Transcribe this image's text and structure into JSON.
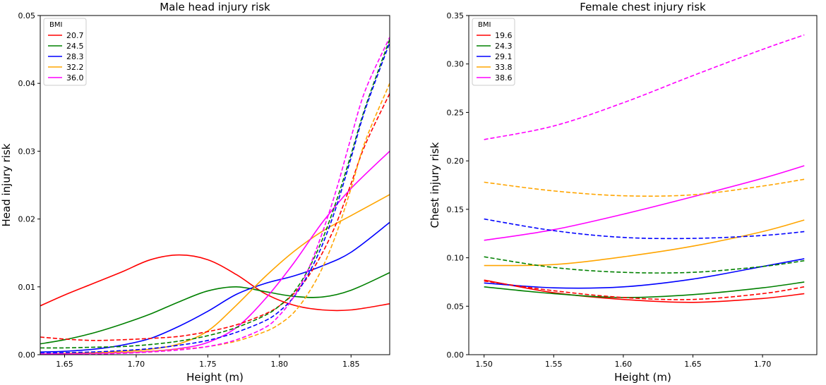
{
  "chart_data": [
    {
      "type": "line",
      "title": "Male head injury risk",
      "xlabel": "Height (m)",
      "ylabel": "Head injury risk",
      "xlim": [
        1.633,
        1.877
      ],
      "ylim": [
        0,
        0.05
      ],
      "xticks": [
        1.65,
        1.7,
        1.75,
        1.8,
        1.85
      ],
      "xtick_labels": [
        "1.65",
        "1.70",
        "1.75",
        "1.80",
        "1.85"
      ],
      "yticks": [
        0,
        0.01,
        0.02,
        0.03,
        0.04,
        0.05
      ],
      "ytick_labels": [
        "0.00",
        "0.01",
        "0.02",
        "0.03",
        "0.04",
        "0.05"
      ],
      "legend": {
        "title": "BMI",
        "position": "top-left"
      },
      "series": [
        {
          "name": "20.7",
          "color": "#ff0000",
          "style": "solid",
          "legend": true,
          "x": [
            1.633,
            1.65,
            1.67,
            1.69,
            1.71,
            1.73,
            1.75,
            1.77,
            1.79,
            1.81,
            1.83,
            1.85,
            1.877
          ],
          "y": [
            0.0072,
            0.0088,
            0.0105,
            0.0122,
            0.014,
            0.0147,
            0.014,
            0.0118,
            0.009,
            0.0073,
            0.0066,
            0.0066,
            0.0075
          ]
        },
        {
          "name": "24.5",
          "color": "#008000",
          "style": "solid",
          "legend": true,
          "x": [
            1.633,
            1.65,
            1.67,
            1.69,
            1.71,
            1.73,
            1.75,
            1.77,
            1.79,
            1.81,
            1.83,
            1.85,
            1.877
          ],
          "y": [
            0.0016,
            0.0022,
            0.0032,
            0.0045,
            0.006,
            0.0078,
            0.0094,
            0.01,
            0.0093,
            0.0086,
            0.0085,
            0.0095,
            0.0121
          ]
        },
        {
          "name": "28.3",
          "color": "#0000ff",
          "style": "solid",
          "legend": true,
          "x": [
            1.633,
            1.65,
            1.67,
            1.69,
            1.71,
            1.73,
            1.75,
            1.77,
            1.79,
            1.81,
            1.83,
            1.85,
            1.877
          ],
          "y": [
            0.0004,
            0.0005,
            0.0008,
            0.0014,
            0.0024,
            0.0042,
            0.0064,
            0.0089,
            0.0105,
            0.0116,
            0.0131,
            0.0151,
            0.0195
          ]
        },
        {
          "name": "32.2",
          "color": "#ffa500",
          "style": "solid",
          "legend": true,
          "x": [
            1.633,
            1.65,
            1.67,
            1.69,
            1.71,
            1.73,
            1.75,
            1.77,
            1.79,
            1.81,
            1.83,
            1.85,
            1.877
          ],
          "y": [
            0.0001,
            0.0002,
            0.0003,
            0.0005,
            0.0008,
            0.0016,
            0.0035,
            0.0073,
            0.0115,
            0.0152,
            0.0182,
            0.0205,
            0.0236
          ]
        },
        {
          "name": "36.0",
          "color": "#ff00ff",
          "style": "solid",
          "legend": true,
          "x": [
            1.633,
            1.65,
            1.67,
            1.69,
            1.71,
            1.73,
            1.75,
            1.77,
            1.79,
            1.81,
            1.83,
            1.85,
            1.877
          ],
          "y": [
            0.0001,
            0.0001,
            0.0002,
            0.0003,
            0.0005,
            0.0009,
            0.0018,
            0.004,
            0.0082,
            0.0135,
            0.0195,
            0.0245,
            0.03
          ]
        },
        {
          "name": "20.7 (dashed)",
          "color": "#ff0000",
          "style": "dashed",
          "legend": false,
          "x": [
            1.633,
            1.65,
            1.67,
            1.69,
            1.71,
            1.73,
            1.75,
            1.77,
            1.79,
            1.8,
            1.81,
            1.82,
            1.83,
            1.84,
            1.85,
            1.86,
            1.877
          ],
          "y": [
            0.0026,
            0.0023,
            0.0021,
            0.0022,
            0.0024,
            0.0027,
            0.0034,
            0.0044,
            0.006,
            0.0072,
            0.009,
            0.0115,
            0.015,
            0.0195,
            0.0252,
            0.031,
            0.0385
          ]
        },
        {
          "name": "24.5 (dashed)",
          "color": "#008000",
          "style": "dashed",
          "legend": false,
          "x": [
            1.633,
            1.65,
            1.67,
            1.69,
            1.71,
            1.73,
            1.75,
            1.77,
            1.79,
            1.8,
            1.81,
            1.82,
            1.83,
            1.84,
            1.85,
            1.86,
            1.877
          ],
          "y": [
            0.001,
            0.001,
            0.0011,
            0.0012,
            0.0015,
            0.002,
            0.0028,
            0.004,
            0.0058,
            0.0072,
            0.0092,
            0.0125,
            0.017,
            0.0228,
            0.0295,
            0.0365,
            0.0465
          ]
        },
        {
          "name": "28.3 (dashed)",
          "color": "#0000ff",
          "style": "dashed",
          "legend": false,
          "x": [
            1.633,
            1.65,
            1.67,
            1.69,
            1.71,
            1.73,
            1.75,
            1.77,
            1.79,
            1.8,
            1.81,
            1.82,
            1.83,
            1.84,
            1.85,
            1.86,
            1.877
          ],
          "y": [
            0.0002,
            0.0003,
            0.0004,
            0.0006,
            0.0009,
            0.0014,
            0.0021,
            0.0033,
            0.005,
            0.0064,
            0.0085,
            0.0118,
            0.0162,
            0.022,
            0.029,
            0.0362,
            0.046
          ]
        },
        {
          "name": "32.2 (dashed)",
          "color": "#ffa500",
          "style": "dashed",
          "legend": false,
          "x": [
            1.633,
            1.65,
            1.67,
            1.69,
            1.71,
            1.73,
            1.75,
            1.77,
            1.79,
            1.8,
            1.81,
            1.82,
            1.83,
            1.84,
            1.85,
            1.86,
            1.877
          ],
          "y": [
            0.0001,
            0.0001,
            0.0002,
            0.0003,
            0.0005,
            0.0008,
            0.0012,
            0.002,
            0.0034,
            0.0045,
            0.0062,
            0.009,
            0.0128,
            0.018,
            0.0245,
            0.0315,
            0.04
          ]
        },
        {
          "name": "36.0 (dashed)",
          "color": "#ff00ff",
          "style": "dashed",
          "legend": false,
          "x": [
            1.633,
            1.65,
            1.67,
            1.69,
            1.71,
            1.73,
            1.75,
            1.77,
            1.79,
            1.8,
            1.81,
            1.82,
            1.83,
            1.84,
            1.85,
            1.86,
            1.877
          ],
          "y": [
            0.0001,
            0.0001,
            0.0001,
            0.0002,
            0.0004,
            0.0007,
            0.0012,
            0.0022,
            0.004,
            0.0058,
            0.0085,
            0.0125,
            0.018,
            0.0245,
            0.032,
            0.039,
            0.0468
          ]
        }
      ]
    },
    {
      "type": "line",
      "title": "Female chest injury risk",
      "xlabel": "Height (m)",
      "ylabel": "Chest injury risk",
      "xlim": [
        1.489,
        1.739
      ],
      "ylim": [
        0,
        0.35
      ],
      "xticks": [
        1.5,
        1.55,
        1.6,
        1.65,
        1.7
      ],
      "xtick_labels": [
        "1.50",
        "1.55",
        "1.60",
        "1.65",
        "1.70"
      ],
      "yticks": [
        0,
        0.05,
        0.1,
        0.15,
        0.2,
        0.25,
        0.3,
        0.35
      ],
      "ytick_labels": [
        "0.00",
        "0.05",
        "0.10",
        "0.15",
        "0.20",
        "0.25",
        "0.30",
        "0.35"
      ],
      "legend": {
        "title": "BMI",
        "position": "top-left"
      },
      "series": [
        {
          "name": "19.6",
          "color": "#ff0000",
          "style": "solid",
          "legend": true,
          "x": [
            1.5,
            1.55,
            1.6,
            1.65,
            1.7,
            1.73
          ],
          "y": [
            0.077,
            0.064,
            0.057,
            0.054,
            0.058,
            0.063
          ]
        },
        {
          "name": "24.3",
          "color": "#008000",
          "style": "solid",
          "legend": true,
          "x": [
            1.5,
            1.55,
            1.6,
            1.65,
            1.7,
            1.73
          ],
          "y": [
            0.07,
            0.063,
            0.059,
            0.062,
            0.069,
            0.075
          ]
        },
        {
          "name": "29.1",
          "color": "#0000ff",
          "style": "solid",
          "legend": true,
          "x": [
            1.5,
            1.55,
            1.6,
            1.65,
            1.7,
            1.73
          ],
          "y": [
            0.074,
            0.069,
            0.07,
            0.078,
            0.091,
            0.099
          ]
        },
        {
          "name": "33.8",
          "color": "#ffa500",
          "style": "solid",
          "legend": true,
          "x": [
            1.5,
            1.55,
            1.6,
            1.65,
            1.7,
            1.73
          ],
          "y": [
            0.092,
            0.093,
            0.101,
            0.112,
            0.127,
            0.139
          ]
        },
        {
          "name": "38.6",
          "color": "#ff00ff",
          "style": "solid",
          "legend": true,
          "x": [
            1.5,
            1.55,
            1.6,
            1.65,
            1.7,
            1.73
          ],
          "y": [
            0.118,
            0.129,
            0.145,
            0.163,
            0.182,
            0.195
          ]
        },
        {
          "name": "19.6 (dashed)",
          "color": "#ff0000",
          "style": "dashed",
          "legend": false,
          "x": [
            1.5,
            1.55,
            1.6,
            1.65,
            1.7,
            1.73
          ],
          "y": [
            0.076,
            0.066,
            0.059,
            0.057,
            0.063,
            0.07
          ]
        },
        {
          "name": "24.3 (dashed)",
          "color": "#008000",
          "style": "dashed",
          "legend": false,
          "x": [
            1.5,
            1.55,
            1.6,
            1.65,
            1.7,
            1.73
          ],
          "y": [
            0.101,
            0.09,
            0.085,
            0.085,
            0.091,
            0.097
          ]
        },
        {
          "name": "29.1 (dashed)",
          "color": "#0000ff",
          "style": "dashed",
          "legend": false,
          "x": [
            1.5,
            1.55,
            1.6,
            1.65,
            1.7,
            1.73
          ],
          "y": [
            0.14,
            0.128,
            0.121,
            0.12,
            0.123,
            0.127
          ]
        },
        {
          "name": "33.8 (dashed)",
          "color": "#ffa500",
          "style": "dashed",
          "legend": false,
          "x": [
            1.5,
            1.55,
            1.6,
            1.65,
            1.7,
            1.73
          ],
          "y": [
            0.178,
            0.169,
            0.164,
            0.165,
            0.174,
            0.181
          ]
        },
        {
          "name": "38.6 (dashed)",
          "color": "#ff00ff",
          "style": "dashed",
          "legend": false,
          "x": [
            1.5,
            1.55,
            1.6,
            1.65,
            1.7,
            1.73
          ],
          "y": [
            0.222,
            0.236,
            0.26,
            0.288,
            0.315,
            0.33
          ]
        }
      ]
    }
  ]
}
